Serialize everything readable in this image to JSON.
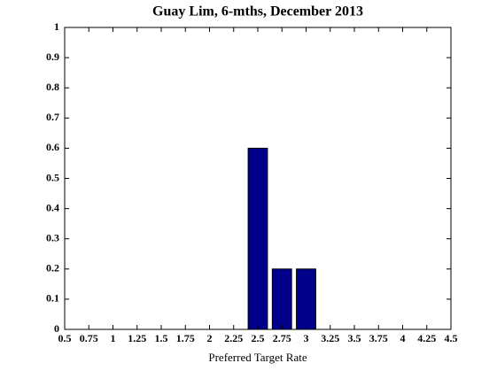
{
  "chart_data": {
    "type": "bar",
    "title": "Guay Lim, 6-mths, December 2013",
    "x_label": "Preferred Target Rate",
    "x": [
      2.5,
      2.75,
      3
    ],
    "values": [
      0.6,
      0.2,
      0.2
    ],
    "color": "#00008b",
    "xlim": [
      0.5,
      4.5
    ],
    "xticks": [
      0.5,
      0.75,
      1,
      1.25,
      1.5,
      1.75,
      2,
      2.25,
      2.5,
      2.75,
      3,
      3.25,
      3.5,
      3.75,
      4,
      4.25,
      4.5
    ],
    "ylim": [
      0,
      1
    ],
    "yticks": [
      0,
      0.1,
      0.2,
      0.3,
      0.4,
      0.5,
      0.6,
      0.7,
      0.8,
      0.9,
      1
    ],
    "bar_width": 0.2,
    "grid": false
  }
}
